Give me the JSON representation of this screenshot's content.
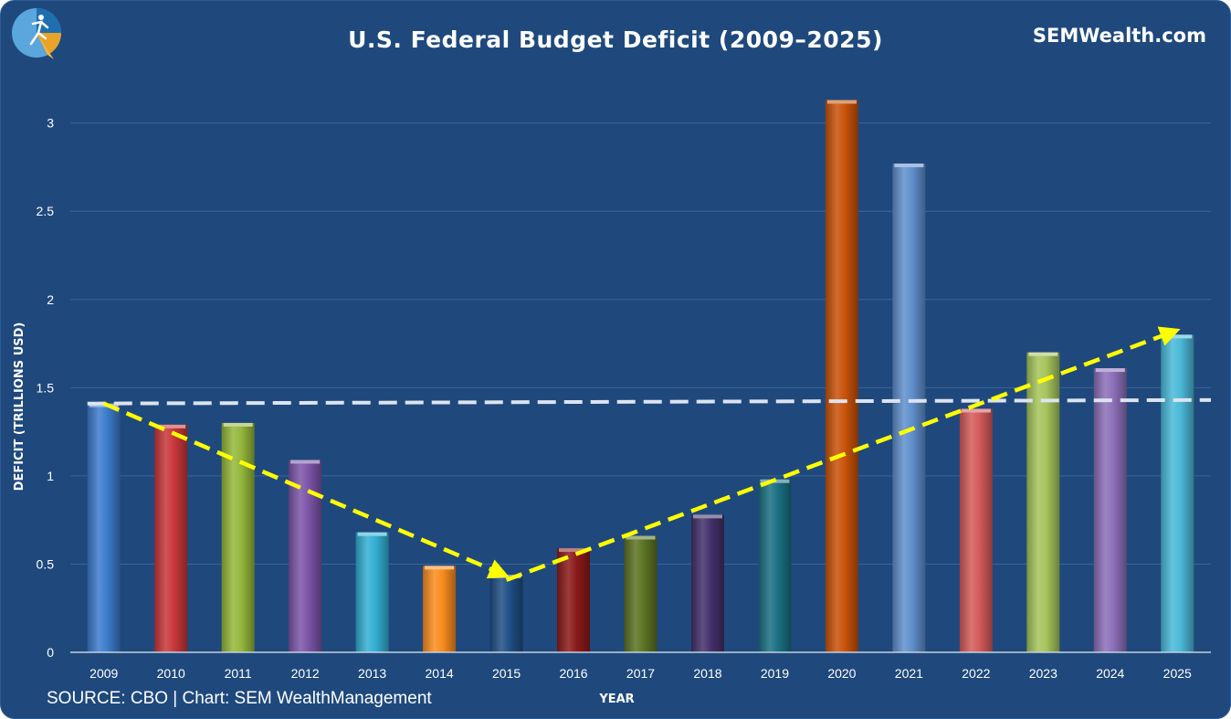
{
  "header": {
    "brand": "SEMWealth.com",
    "logo_icon": "sem-logo-icon"
  },
  "footer": {
    "source": "SOURCE: CBO | Chart: SEM WealthManagement"
  },
  "colors": {
    "background": "#1f497d",
    "gridline": "#3a6698",
    "average_line": "#dde4f0",
    "trend_arrow": "#ffff00"
  },
  "chart_data": {
    "type": "bar",
    "title": "U.S. Federal Budget Deficit (2009–2025)",
    "xlabel": "YEAR",
    "ylabel": "DEFICIT (TRILLIONS USD)",
    "ylim": [
      0,
      3.2
    ],
    "yticks": [
      0,
      0.5,
      1,
      1.5,
      2,
      2.5,
      3
    ],
    "ytick_labels": [
      "0",
      "0.5",
      "1",
      "1.5",
      "2",
      "2.5",
      "3"
    ],
    "grid": true,
    "categories": [
      "2009",
      "2010",
      "2011",
      "2012",
      "2013",
      "2014",
      "2015",
      "2016",
      "2017",
      "2018",
      "2019",
      "2020",
      "2021",
      "2022",
      "2023",
      "2024",
      "2025"
    ],
    "values": [
      1.41,
      1.29,
      1.3,
      1.09,
      0.68,
      0.49,
      0.44,
      0.59,
      0.66,
      0.78,
      0.98,
      3.13,
      2.77,
      1.38,
      1.7,
      1.61,
      1.8
    ],
    "bar_colors": [
      "#3d7ccc",
      "#c8373a",
      "#94b73b",
      "#7c55a8",
      "#33afd2",
      "#f98c1e",
      "#1f4f85",
      "#8b1a1a",
      "#5b7323",
      "#43306a",
      "#1a6f82",
      "#c85209",
      "#5f8fcc",
      "#d45b5b",
      "#a5c45c",
      "#8c6fb8",
      "#4ab9d8"
    ],
    "annotations": [
      {
        "type": "average_line",
        "style": "dashed",
        "x_start": "2009",
        "x_end": "2025",
        "y_start": 1.41,
        "y_end": 1.43
      },
      {
        "type": "trend_arrow",
        "style": "dashed",
        "from": {
          "x": "2009",
          "y": 1.41
        },
        "to": {
          "x": "2015",
          "y": 0.44
        }
      },
      {
        "type": "trend_arrow",
        "style": "dashed",
        "from": {
          "x": "2015",
          "y": 0.41
        },
        "to": {
          "x": "2025",
          "y": 1.82
        }
      }
    ]
  }
}
